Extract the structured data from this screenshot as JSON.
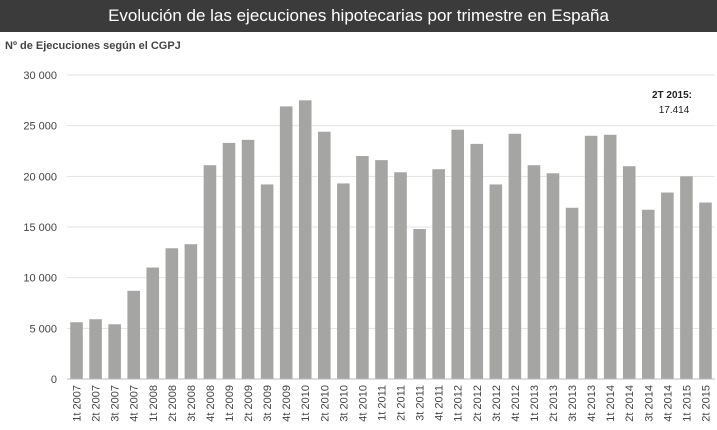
{
  "chart_data": {
    "type": "bar",
    "title": "Evolución de las ejecuciones hipotecarias por trimestre en España",
    "ylabel": "Nº de Ejecuciones según el CGPJ",
    "xlabel": "",
    "ylim": [
      0,
      30000
    ],
    "yticks": [
      "0",
      "5 000",
      "10 000",
      "15 000",
      "20 000",
      "25 000",
      "30 000"
    ],
    "grid": true,
    "bar_color": "#a5a5a3",
    "categories": [
      "1t 2007",
      "2t 2007",
      "3t 2007",
      "4t 2007",
      "1t 2008",
      "2t 2008",
      "3t 2008",
      "4t 2008",
      "1t 2009",
      "2t 2009",
      "3t 2009",
      "4t 2009",
      "1t 2010",
      "2t 2010",
      "3t 2010",
      "4t 2010",
      "1t 2011",
      "2t 2011",
      "3t 2011",
      "4t 2011",
      "1t 2012",
      "2t 2012",
      "3t 2012",
      "4t 2012",
      "1t 2013",
      "2t 2013",
      "3t 2013",
      "4t 2013",
      "1t 2014",
      "2t 2014",
      "3t 2014",
      "4t 2014",
      "1t 2015",
      "2t 2015"
    ],
    "values": [
      5600,
      5900,
      5400,
      8700,
      11000,
      12900,
      13300,
      21100,
      23300,
      23600,
      19200,
      26900,
      27500,
      24400,
      19300,
      22000,
      21600,
      20400,
      14800,
      20700,
      24600,
      23200,
      19200,
      24200,
      21100,
      20300,
      16900,
      24000,
      24100,
      21000,
      16700,
      18400,
      20000,
      17414
    ],
    "annotation": {
      "label": "2T 2015:",
      "value": "17.414"
    }
  }
}
